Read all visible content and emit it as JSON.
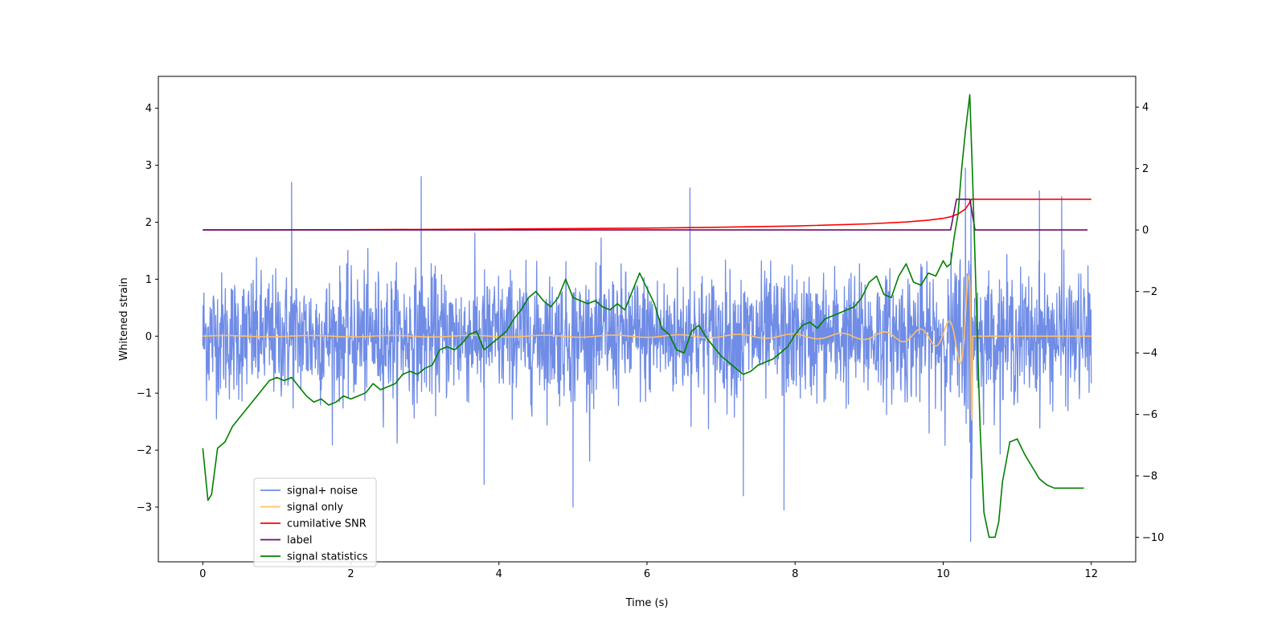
{
  "chart_data": {
    "type": "line",
    "xlabel": "Time (s)",
    "ylabel": "Whitened strain",
    "xlim": [
      -0.6,
      12.6
    ],
    "xticks": [
      0,
      2,
      4,
      6,
      8,
      10,
      12
    ],
    "ylim": [
      -3.96,
      4.56
    ],
    "yticks": [
      -3,
      -2,
      -1,
      0,
      1,
      2,
      3,
      4
    ],
    "y2lim": [
      -10.8,
      5.0
    ],
    "y2ticks": [
      -10,
      -8,
      -6,
      -4,
      -2,
      0,
      2,
      4
    ],
    "legend_position": "lower-left",
    "grid": false,
    "series": [
      {
        "name": "signal+ noise",
        "color": "#6f8ce6",
        "axis": "left",
        "kind": "noise",
        "x_range": [
          0,
          12
        ],
        "typical_range": [
          -1.4,
          1.4
        ],
        "notable_peaks": [
          {
            "x": 1.2,
            "y": 2.7
          },
          {
            "x": 2.95,
            "y": 2.8
          },
          {
            "x": 6.58,
            "y": 2.6
          },
          {
            "x": 10.3,
            "y": 2.95
          },
          {
            "x": 11.3,
            "y": 2.55
          },
          {
            "x": 11.6,
            "y": 2.45
          }
        ],
        "notable_troughs": [
          {
            "x": 3.8,
            "y": -2.6
          },
          {
            "x": 5.0,
            "y": -3.0
          },
          {
            "x": 7.3,
            "y": -2.8
          },
          {
            "x": 7.85,
            "y": -3.05
          },
          {
            "x": 10.37,
            "y": -3.6
          }
        ]
      },
      {
        "name": "signal only",
        "color": "#ffbf66",
        "axis": "left",
        "kind": "chirp",
        "x": [
          0,
          2,
          4,
          6,
          8,
          9,
          9.5,
          9.8,
          10.0,
          10.1,
          10.2,
          10.3,
          10.35,
          10.38,
          10.4,
          12
        ],
        "envelope": [
          0.01,
          0.012,
          0.015,
          0.02,
          0.04,
          0.06,
          0.1,
          0.14,
          0.2,
          0.28,
          0.4,
          0.7,
          1.2,
          3.0,
          0.0,
          0.0
        ]
      },
      {
        "name": "cumilative SNR",
        "color": "#ff0000",
        "axis": "right",
        "x": [
          0,
          2,
          4,
          6,
          7,
          8,
          9,
          9.5,
          9.8,
          10.0,
          10.1,
          10.2,
          10.3,
          10.35,
          10.38,
          10.4,
          12
        ],
        "values": [
          0,
          0.01,
          0.03,
          0.06,
          0.09,
          0.13,
          0.2,
          0.26,
          0.32,
          0.38,
          0.43,
          0.52,
          0.68,
          0.86,
          1.0,
          1.0,
          1.0
        ]
      },
      {
        "name": "label",
        "color": "#6a0d6f",
        "axis": "right",
        "x": [
          0,
          10.1,
          10.18,
          10.36,
          10.43,
          11.95
        ],
        "values": [
          0,
          0,
          1,
          1,
          0,
          0
        ]
      },
      {
        "name": "signal statistics",
        "color": "#008000",
        "axis": "right",
        "x": [
          0,
          0.07,
          0.12,
          0.2,
          0.3,
          0.4,
          0.5,
          0.6,
          0.7,
          0.8,
          0.9,
          1.0,
          1.1,
          1.2,
          1.3,
          1.4,
          1.5,
          1.6,
          1.7,
          1.8,
          1.9,
          2.0,
          2.1,
          2.2,
          2.3,
          2.4,
          2.5,
          2.6,
          2.7,
          2.8,
          2.9,
          3.0,
          3.1,
          3.2,
          3.3,
          3.4,
          3.5,
          3.6,
          3.7,
          3.8,
          3.9,
          4.0,
          4.1,
          4.2,
          4.3,
          4.4,
          4.5,
          4.6,
          4.7,
          4.8,
          4.9,
          5.0,
          5.1,
          5.2,
          5.3,
          5.4,
          5.5,
          5.6,
          5.7,
          5.8,
          5.9,
          6.0,
          6.1,
          6.2,
          6.3,
          6.4,
          6.5,
          6.6,
          6.7,
          6.8,
          6.9,
          7.0,
          7.1,
          7.2,
          7.3,
          7.4,
          7.5,
          7.6,
          7.7,
          7.8,
          7.9,
          8.0,
          8.1,
          8.2,
          8.3,
          8.4,
          8.5,
          8.6,
          8.7,
          8.8,
          8.9,
          9.0,
          9.1,
          9.2,
          9.3,
          9.4,
          9.5,
          9.6,
          9.7,
          9.8,
          9.9,
          10.0,
          10.05,
          10.1,
          10.15,
          10.2,
          10.25,
          10.3,
          10.36,
          10.4,
          10.45,
          10.5,
          10.55,
          10.62,
          10.7,
          10.75,
          10.8,
          10.9,
          11.0,
          11.1,
          11.2,
          11.3,
          11.4,
          11.5,
          11.6,
          11.7,
          11.8,
          11.9
        ],
        "values": [
          -7.1,
          -8.8,
          -8.6,
          -7.1,
          -6.9,
          -6.4,
          -6.1,
          -5.8,
          -5.5,
          -5.2,
          -4.9,
          -4.8,
          -4.9,
          -4.8,
          -5.1,
          -5.4,
          -5.6,
          -5.5,
          -5.7,
          -5.6,
          -5.4,
          -5.5,
          -5.4,
          -5.3,
          -5.0,
          -5.2,
          -5.1,
          -5.0,
          -4.7,
          -4.6,
          -4.7,
          -4.5,
          -4.4,
          -3.9,
          -3.8,
          -3.9,
          -3.7,
          -3.4,
          -3.3,
          -3.9,
          -3.7,
          -3.5,
          -3.3,
          -2.9,
          -2.6,
          -2.2,
          -2.0,
          -2.3,
          -2.5,
          -2.2,
          -1.6,
          -2.2,
          -2.3,
          -2.4,
          -2.3,
          -2.5,
          -2.6,
          -2.4,
          -2.6,
          -2.0,
          -1.4,
          -1.9,
          -2.4,
          -3.2,
          -3.4,
          -3.9,
          -4.0,
          -3.3,
          -3.1,
          -3.5,
          -3.8,
          -4.1,
          -4.3,
          -4.5,
          -4.7,
          -4.6,
          -4.4,
          -4.3,
          -4.2,
          -4.0,
          -3.8,
          -3.4,
          -3.1,
          -3.0,
          -3.2,
          -2.9,
          -2.8,
          -2.7,
          -2.6,
          -2.5,
          -2.2,
          -1.7,
          -1.5,
          -2.1,
          -2.2,
          -1.5,
          -1.1,
          -1.7,
          -1.8,
          -1.4,
          -1.5,
          -1.0,
          -1.2,
          -1.1,
          -0.2,
          0.5,
          2.0,
          3.2,
          4.4,
          1.5,
          -2.5,
          -6.5,
          -9.2,
          -10.0,
          -10.0,
          -9.5,
          -8.2,
          -6.9,
          -6.8,
          -7.3,
          -7.7,
          -8.1,
          -8.3,
          -8.4,
          -8.4,
          -8.4,
          -8.4,
          -8.4
        ]
      }
    ]
  }
}
